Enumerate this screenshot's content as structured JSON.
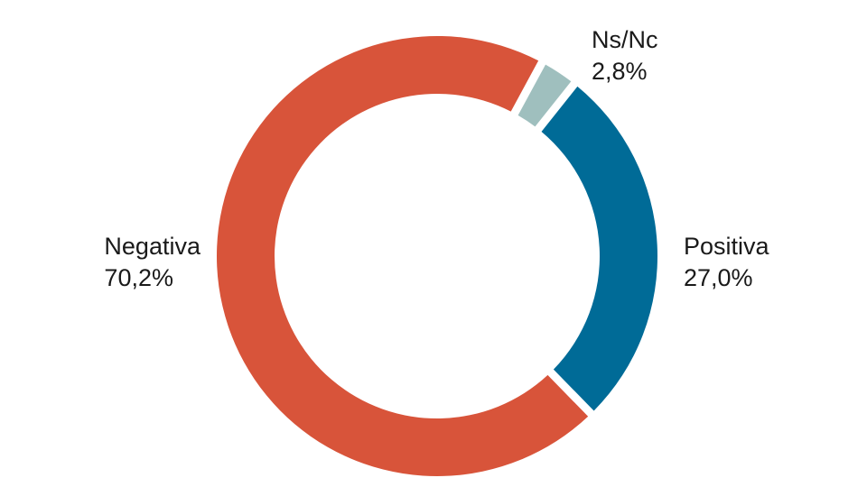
{
  "chart_data": {
    "type": "pie",
    "title": "",
    "donut": true,
    "start": "top",
    "direction": "counter-clockwise from Ns/Nc, Negativa on the left",
    "slices": [
      {
        "name": "Negativa",
        "value": 70.2,
        "label": "70,2%",
        "color": "#d8543a"
      },
      {
        "name": "Positiva",
        "value": 27.0,
        "label": "27,0%",
        "color": "#006b97"
      },
      {
        "name": "Ns/Nc",
        "value": 2.8,
        "label": "2,8%",
        "color": "#9fbfbe"
      }
    ]
  }
}
